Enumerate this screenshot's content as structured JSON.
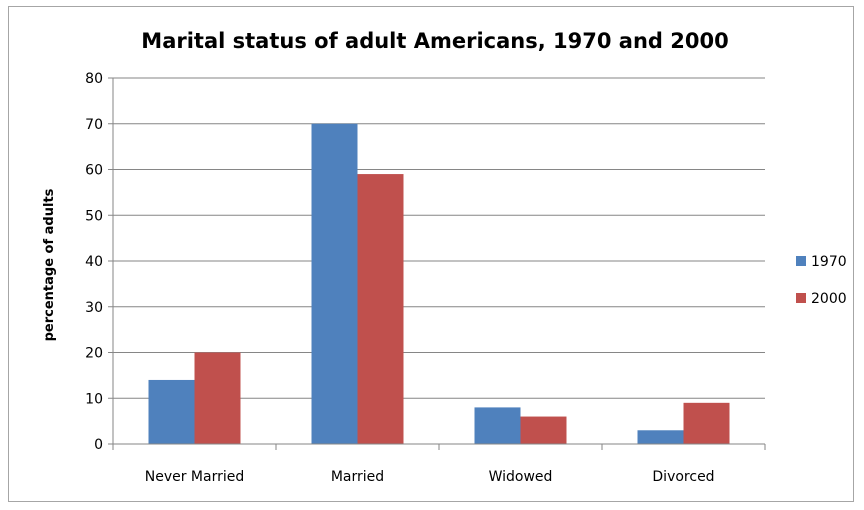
{
  "chart_data": {
    "type": "bar",
    "title": "Marital status of adult Americans, 1970 and 2000",
    "xlabel": "",
    "ylabel": "percentage of adults",
    "categories": [
      "Never Married",
      "Married",
      "Widowed",
      "Divorced"
    ],
    "series": [
      {
        "name": "1970",
        "values": [
          14,
          70,
          8,
          3
        ],
        "color": "#4f81bd"
      },
      {
        "name": "2000",
        "values": [
          20,
          59,
          6,
          9
        ],
        "color": "#c0504d"
      }
    ],
    "ylim": [
      0,
      80
    ],
    "yticks": [
      0,
      10,
      20,
      30,
      40,
      50,
      60,
      70,
      80
    ],
    "grid": true,
    "legend": "right"
  }
}
